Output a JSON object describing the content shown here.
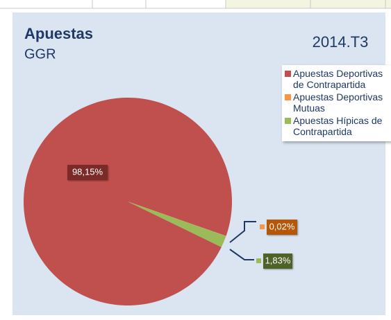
{
  "chart_data": {
    "type": "pie",
    "title": "Apuestas",
    "subtitle": "GGR",
    "period": "2014.T3",
    "categories": [
      "Apuestas Deportivas de Contrapartida",
      "Apuestas Deportivas Mutuas",
      "Apuestas Hípicas de Contrapartida"
    ],
    "values": [
      98.15,
      0.02,
      1.83
    ],
    "value_labels": [
      "98,15%",
      "0,02%",
      "1,83%"
    ],
    "colors": [
      "#c0504d",
      "#f79646",
      "#9bbb59"
    ],
    "startangle": 116,
    "legend": "upper right"
  }
}
